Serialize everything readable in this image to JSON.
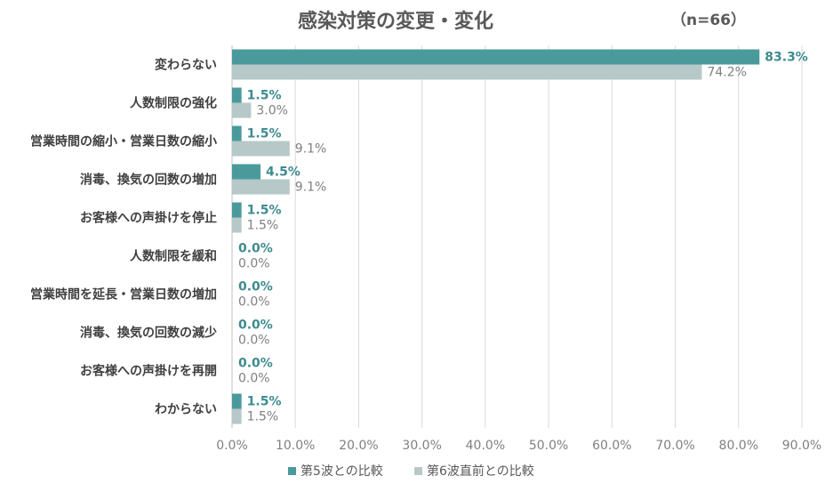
{
  "title": "感染対策の変更・変化",
  "sample_size": "（n=66）",
  "colors": {
    "series1": "#4a9a9c",
    "series2": "#b6c8c8",
    "grid": "#d9d9d9"
  },
  "chart_data": {
    "type": "bar",
    "orientation": "horizontal",
    "title": "感染対策の変更・変化",
    "categories": [
      "変わらない",
      "人数制限の強化",
      "営業時間の縮小・営業日数の縮小",
      "消毒、換気の回数の増加",
      "お客様への声掛けを停止",
      "人数制限を緩和",
      "営業時間を延長・営業日数の増加",
      "消毒、換気の回数の減少",
      "お客様への声掛けを再開",
      "わからない"
    ],
    "series": [
      {
        "name": "第5波との比較",
        "values": [
          83.3,
          1.5,
          1.5,
          4.5,
          1.5,
          0.0,
          0.0,
          0.0,
          0.0,
          1.5
        ]
      },
      {
        "name": "第6波直前との比較",
        "values": [
          74.2,
          3.0,
          9.1,
          9.1,
          1.5,
          0.0,
          0.0,
          0.0,
          0.0,
          1.5
        ]
      }
    ],
    "xlim": [
      0,
      90
    ],
    "xticks": [
      "0.0%",
      "10.0%",
      "20.0%",
      "30.0%",
      "40.0%",
      "50.0%",
      "60.0%",
      "70.0%",
      "80.0%",
      "90.0%"
    ],
    "grid": true,
    "legend": "bottom"
  }
}
